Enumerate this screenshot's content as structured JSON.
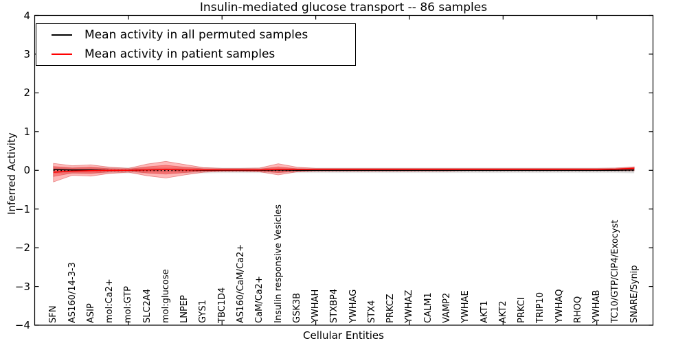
{
  "title": "Insulin-mediated glucose transport -- 86 samples",
  "legend": {
    "position": "upper left",
    "entries": [
      {
        "label": "Mean activity in all permuted samples",
        "color": "#000000"
      },
      {
        "label": "Mean activity in patient samples",
        "color": "#ff0000"
      }
    ]
  },
  "chart_data": {
    "type": "line",
    "title": "Insulin-mediated glucose transport -- 86 samples",
    "xlabel": "Cellular Entities",
    "ylabel": "Inferred Activity",
    "xlim": [
      0,
      33
    ],
    "ylim": [
      -4,
      4
    ],
    "yticks": [
      -4,
      -3,
      -2,
      -1,
      0,
      1,
      2,
      3,
      4
    ],
    "xticks": [
      5,
      10,
      15,
      20,
      25,
      30
    ],
    "grid": false,
    "legend_position": "upper left",
    "x": [
      1,
      2,
      3,
      4,
      5,
      6,
      7,
      8,
      9,
      10,
      11,
      12,
      13,
      14,
      15,
      16,
      17,
      18,
      19,
      20,
      21,
      22,
      23,
      24,
      25,
      26,
      27,
      28,
      29,
      30,
      31,
      32
    ],
    "categories": [
      "SFN",
      "AS160/14-3-3",
      "ASIP",
      "mol:Ca2+",
      "mol:GTP",
      "SLC2A4",
      "mol:glucose",
      "LNPEP",
      "GYS1",
      "TBC1D4",
      "AS160/CaM/Ca2+",
      "CaM/Ca2+",
      "Insulin responsive Vesicles",
      "GSK3B",
      "YWHAH",
      "STXBP4",
      "YWHAG",
      "STX4",
      "PRKCZ",
      "YWHAZ",
      "CALM1",
      "VAMP2",
      "YWHAE",
      "AKT1",
      "AKT2",
      "PRKCI",
      "TRIP10",
      "YWHAQ",
      "RHOQ",
      "YWHAB",
      "TC10/GTP/CIP4/Exocyst",
      "SNARE/Synip"
    ],
    "series": [
      {
        "name": "Mean activity in all permuted samples",
        "color": "#000000",
        "values": [
          0.02,
          0.01,
          0.01,
          0.0,
          0.0,
          0.01,
          0.02,
          0.01,
          0.0,
          0.0,
          0.0,
          0.0,
          0.01,
          0.0,
          0.0,
          0.0,
          0.0,
          0.0,
          0.0,
          0.0,
          0.0,
          0.0,
          0.0,
          0.0,
          0.0,
          0.0,
          0.0,
          0.0,
          0.0,
          0.0,
          0.0,
          0.01
        ]
      },
      {
        "name": "Mean activity in patient samples",
        "color": "#ff0000",
        "values": [
          -0.05,
          -0.02,
          -0.01,
          0.0,
          0.0,
          0.01,
          0.02,
          0.01,
          0.01,
          0.01,
          0.01,
          0.01,
          0.02,
          0.02,
          0.02,
          0.02,
          0.02,
          0.02,
          0.02,
          0.02,
          0.02,
          0.02,
          0.02,
          0.02,
          0.02,
          0.02,
          0.02,
          0.02,
          0.02,
          0.02,
          0.03,
          0.05
        ]
      }
    ],
    "bands": [
      {
        "name": "permuted-range-outer",
        "color": "#999999",
        "opacity": 0.22,
        "edge": "none",
        "hi": [
          0.1,
          0.09,
          0.09,
          0.08,
          0.08,
          0.08,
          0.08,
          0.08,
          0.08,
          0.07,
          0.07,
          0.07,
          0.07,
          0.07,
          0.07,
          0.07,
          0.07,
          0.07,
          0.07,
          0.07,
          0.07,
          0.07,
          0.07,
          0.07,
          0.07,
          0.07,
          0.07,
          0.07,
          0.07,
          0.07,
          0.07,
          0.08
        ],
        "lo": [
          -0.1,
          -0.09,
          -0.09,
          -0.08,
          -0.08,
          -0.08,
          -0.08,
          -0.08,
          -0.08,
          -0.07,
          -0.07,
          -0.07,
          -0.07,
          -0.07,
          -0.07,
          -0.07,
          -0.07,
          -0.07,
          -0.07,
          -0.07,
          -0.07,
          -0.07,
          -0.07,
          -0.07,
          -0.07,
          -0.07,
          -0.07,
          -0.07,
          -0.07,
          -0.07,
          -0.07,
          -0.08
        ]
      },
      {
        "name": "permuted-range-inner",
        "color": "#999999",
        "opacity": 0.25,
        "edge": "none",
        "hi": [
          0.07,
          0.06,
          0.06,
          0.06,
          0.05,
          0.05,
          0.05,
          0.05,
          0.05,
          0.05,
          0.05,
          0.05,
          0.05,
          0.05,
          0.05,
          0.05,
          0.05,
          0.05,
          0.05,
          0.05,
          0.05,
          0.05,
          0.05,
          0.05,
          0.05,
          0.05,
          0.05,
          0.05,
          0.05,
          0.05,
          0.05,
          0.06
        ],
        "lo": [
          -0.07,
          -0.06,
          -0.06,
          -0.06,
          -0.05,
          -0.05,
          -0.05,
          -0.05,
          -0.05,
          -0.05,
          -0.05,
          -0.05,
          -0.05,
          -0.05,
          -0.05,
          -0.05,
          -0.05,
          -0.05,
          -0.05,
          -0.05,
          -0.05,
          -0.05,
          -0.05,
          -0.05,
          -0.05,
          -0.05,
          -0.05,
          -0.05,
          -0.05,
          -0.05,
          -0.05,
          -0.06
        ]
      },
      {
        "name": "patient-range-outer",
        "color": "#ff0000",
        "opacity": 0.28,
        "edge": "#d34040",
        "hi": [
          0.18,
          0.12,
          0.14,
          0.08,
          0.05,
          0.16,
          0.23,
          0.15,
          0.07,
          0.05,
          0.05,
          0.06,
          0.17,
          0.08,
          0.05,
          0.05,
          0.05,
          0.05,
          0.05,
          0.05,
          0.05,
          0.05,
          0.05,
          0.05,
          0.05,
          0.05,
          0.05,
          0.05,
          0.05,
          0.05,
          0.06,
          0.09
        ],
        "lo": [
          -0.3,
          -0.13,
          -0.15,
          -0.08,
          -0.05,
          -0.14,
          -0.2,
          -0.12,
          -0.05,
          -0.03,
          -0.03,
          -0.04,
          -0.12,
          -0.04,
          -0.02,
          -0.02,
          -0.02,
          -0.02,
          -0.02,
          -0.02,
          -0.02,
          -0.02,
          -0.01,
          -0.01,
          -0.01,
          -0.01,
          -0.01,
          -0.01,
          -0.01,
          -0.01,
          -0.01,
          -0.01
        ]
      },
      {
        "name": "patient-range-inner",
        "color": "#ff0000",
        "opacity": 0.32,
        "edge": "#d34040",
        "hi": [
          0.1,
          0.06,
          0.08,
          0.04,
          0.03,
          0.09,
          0.13,
          0.08,
          0.04,
          0.03,
          0.03,
          0.03,
          0.09,
          0.04,
          0.03,
          0.03,
          0.03,
          0.03,
          0.03,
          0.03,
          0.03,
          0.03,
          0.03,
          0.03,
          0.03,
          0.03,
          0.03,
          0.03,
          0.03,
          0.03,
          0.04,
          0.07
        ],
        "lo": [
          -0.16,
          -0.07,
          -0.08,
          -0.04,
          -0.02,
          -0.07,
          -0.1,
          -0.06,
          -0.02,
          -0.01,
          -0.01,
          -0.02,
          -0.06,
          -0.02,
          -0.01,
          -0.01,
          -0.01,
          -0.01,
          -0.01,
          -0.01,
          0.0,
          0.0,
          0.0,
          0.0,
          0.0,
          0.0,
          0.0,
          0.0,
          0.0,
          0.0,
          0.01,
          0.03
        ]
      }
    ],
    "zero_line": {
      "value": 0,
      "color": "#000000",
      "style": "dotted"
    }
  }
}
